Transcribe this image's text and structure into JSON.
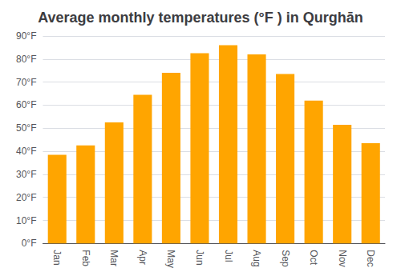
{
  "chart_data": {
    "type": "bar",
    "title": "Average monthly temperatures (°F ) in Qurghān",
    "categories": [
      "Jan",
      "Feb",
      "Mar",
      "Apr",
      "May",
      "Jun",
      "Jul",
      "Aug",
      "Sep",
      "Oct",
      "Nov",
      "Dec"
    ],
    "values": [
      38.5,
      42.5,
      52.5,
      64.5,
      74,
      82.5,
      86,
      82,
      73.5,
      62,
      51.5,
      43.5
    ],
    "color": "#FFA500",
    "ylim": [
      0,
      90
    ],
    "yticks": [
      {
        "value": 0,
        "label": "0°F"
      },
      {
        "value": 10,
        "label": "10°F"
      },
      {
        "value": 20,
        "label": "20°F"
      },
      {
        "value": 30,
        "label": "30°F"
      },
      {
        "value": 40,
        "label": "40°F"
      },
      {
        "value": 50,
        "label": "50°F"
      },
      {
        "value": 60,
        "label": "60°F"
      },
      {
        "value": 70,
        "label": "70°F"
      },
      {
        "value": 80,
        "label": "80°F"
      },
      {
        "value": 90,
        "label": "90°F"
      }
    ],
    "grid": true
  }
}
